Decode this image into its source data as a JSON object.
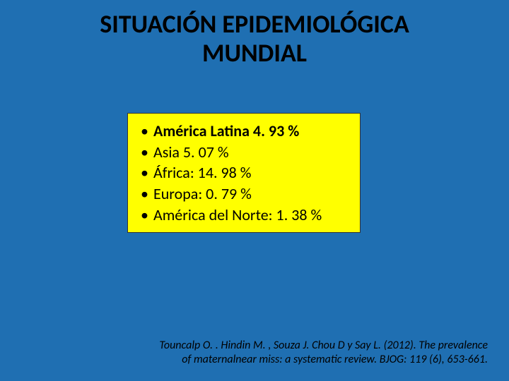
{
  "title_line1": "SITUACIÓN EPIDEMIOLÓGICA",
  "title_line2": "MUNDIAL",
  "bullets": [
    {
      "text": "América Latina 4. 93 %",
      "bold": true
    },
    {
      "text": "Asia 5. 07 %",
      "bold": false
    },
    {
      "text": "África: 14. 98 %",
      "bold": false
    },
    {
      "text": "Europa: 0. 79 %",
      "bold": false
    },
    {
      "text": "América del Norte: 1. 38 %",
      "bold": false
    }
  ],
  "citation": "Touncalp  O. . Hindin M. , Souza J. Chou D y  Say L. (2012). The prevalence of maternalnear miss: a systematic  review. BJOG: 119 (6), 653-661.",
  "colors": {
    "slide_bg": "#1f6fb2",
    "box_bg": "#ffff00",
    "text": "#000000"
  },
  "fonts": {
    "title_size_pt": 36,
    "bullet_size_pt": 22,
    "citation_size_pt": 16
  }
}
